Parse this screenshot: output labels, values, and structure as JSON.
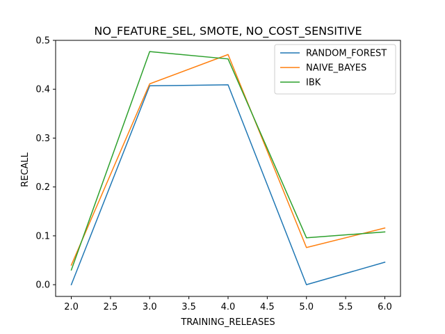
{
  "chart_data": {
    "type": "line",
    "title": "NO_FEATURE_SEL, SMOTE, NO_COST_SENSITIVE",
    "xlabel": "TRAINING_RELEASES",
    "ylabel": "RECALL",
    "x": [
      2.0,
      3.0,
      4.0,
      5.0,
      6.0
    ],
    "xlim": [
      1.8,
      6.2
    ],
    "ylim": [
      -0.024,
      0.5
    ],
    "xticks": [
      "2.0",
      "2.5",
      "3.0",
      "3.5",
      "4.0",
      "4.5",
      "5.0",
      "5.5",
      "6.0"
    ],
    "yticks": [
      "0.0",
      "0.1",
      "0.2",
      "0.3",
      "0.4",
      "0.5"
    ],
    "grid": false,
    "legend_position": "top-right",
    "series": [
      {
        "name": "RANDOM_FOREST",
        "color": "#1f77b4",
        "values": [
          0.0,
          0.407,
          0.409,
          0.0,
          0.046
        ]
      },
      {
        "name": "NAIVE_BAYES",
        "color": "#ff7f0e",
        "values": [
          0.04,
          0.411,
          0.471,
          0.076,
          0.116
        ]
      },
      {
        "name": "IBK",
        "color": "#2ca02c",
        "values": [
          0.03,
          0.477,
          0.462,
          0.096,
          0.108
        ]
      }
    ]
  }
}
